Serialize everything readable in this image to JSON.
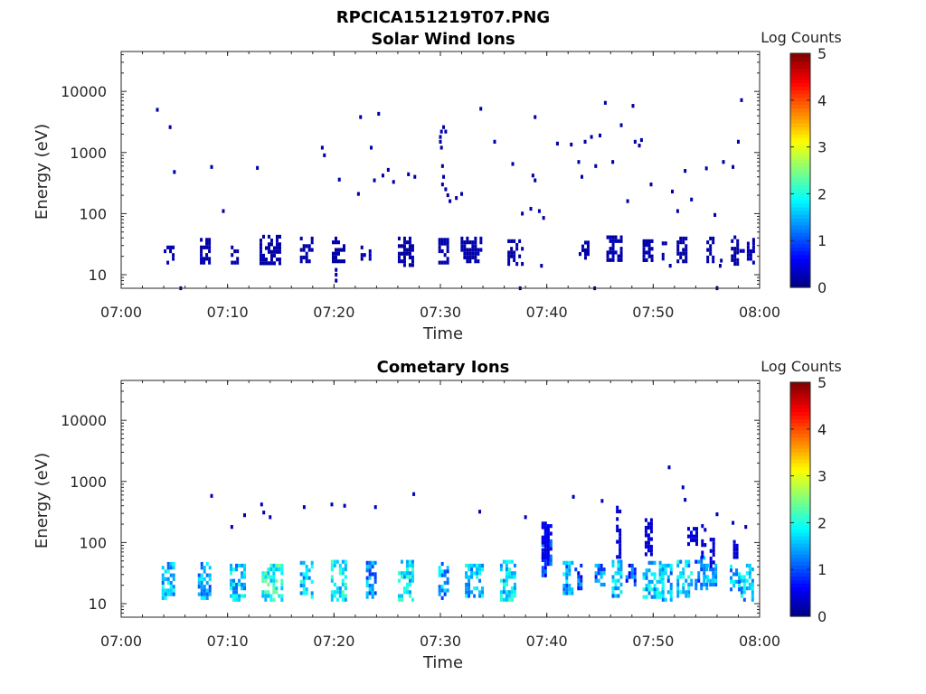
{
  "figure_title": "RPCICA151219T07.PNG",
  "colormap": "jet",
  "chart_data": [
    {
      "type": "heatmap",
      "title": "Solar Wind Ions",
      "xlabel": "Time",
      "ylabel": "Energy (eV)",
      "x_ticks": [
        "07:00",
        "07:10",
        "07:20",
        "07:30",
        "07:40",
        "07:50",
        "08:00"
      ],
      "y_ticks": [
        "10",
        "100",
        "1000",
        "10000"
      ],
      "yscale": "log",
      "ylim": [
        6,
        45000
      ],
      "xlim_minutes": [
        0,
        60
      ],
      "colorbar": {
        "label": "Log Counts",
        "ticks": [
          "0",
          "1",
          "2",
          "3",
          "4",
          "5"
        ],
        "range": [
          0,
          5
        ]
      },
      "cells": [
        [
          3.4,
          5000,
          0.2
        ],
        [
          4.6,
          2600,
          0.2
        ],
        [
          5.0,
          480,
          0.2
        ],
        [
          8.5,
          580,
          0.2
        ],
        [
          9.6,
          110,
          0.2
        ],
        [
          12.8,
          560,
          0.2
        ],
        [
          18.9,
          1200,
          0.2
        ],
        [
          19.1,
          900,
          0.2
        ],
        [
          20.5,
          360,
          0.2
        ],
        [
          22.3,
          210,
          0.2
        ],
        [
          22.5,
          3800,
          0.2
        ],
        [
          23.5,
          1200,
          0.2
        ],
        [
          23.8,
          350,
          0.2
        ],
        [
          24.2,
          4300,
          0.2
        ],
        [
          24.6,
          420,
          0.2
        ],
        [
          25.1,
          520,
          0.2
        ],
        [
          25.6,
          330,
          0.2
        ],
        [
          27.0,
          440,
          0.2
        ],
        [
          27.6,
          400,
          0.2
        ],
        [
          30.0,
          1800,
          0.2
        ],
        [
          30.0,
          1500,
          0.2
        ],
        [
          30.1,
          1200,
          0.2
        ],
        [
          30.1,
          2200,
          0.2
        ],
        [
          30.3,
          2600,
          0.2
        ],
        [
          30.2,
          600,
          0.2
        ],
        [
          30.3,
          400,
          0.2
        ],
        [
          30.2,
          300,
          0.2
        ],
        [
          30.5,
          250,
          0.2
        ],
        [
          30.7,
          200,
          0.2
        ],
        [
          30.9,
          160,
          0.2
        ],
        [
          30.5,
          2200,
          0.2
        ],
        [
          31.5,
          180,
          0.2
        ],
        [
          32.0,
          210,
          0.2
        ],
        [
          33.8,
          5200,
          0.2
        ],
        [
          35.1,
          1500,
          0.2
        ],
        [
          36.8,
          650,
          0.2
        ],
        [
          37.7,
          100,
          0.2
        ],
        [
          38.5,
          120,
          0.2
        ],
        [
          38.7,
          420,
          0.2
        ],
        [
          38.9,
          3800,
          0.2
        ],
        [
          38.9,
          350,
          0.2
        ],
        [
          39.3,
          110,
          0.2
        ],
        [
          39.7,
          85,
          0.2
        ],
        [
          41.0,
          1400,
          0.2
        ],
        [
          42.3,
          1350,
          0.2
        ],
        [
          43.0,
          700,
          0.2
        ],
        [
          43.3,
          400,
          0.2
        ],
        [
          43.6,
          1500,
          0.2
        ],
        [
          44.2,
          1800,
          0.2
        ],
        [
          44.6,
          600,
          0.2
        ],
        [
          45.0,
          1900,
          0.2
        ],
        [
          45.5,
          6500,
          0.2
        ],
        [
          46.2,
          700,
          0.2
        ],
        [
          47.0,
          2800,
          0.2
        ],
        [
          47.6,
          160,
          0.2
        ],
        [
          48.1,
          5800,
          0.2
        ],
        [
          48.3,
          1500,
          0.2
        ],
        [
          48.7,
          1300,
          0.2
        ],
        [
          48.9,
          1600,
          0.2
        ],
        [
          49.8,
          300,
          0.2
        ],
        [
          51.8,
          230,
          0.2
        ],
        [
          52.3,
          110,
          0.2
        ],
        [
          53.0,
          500,
          0.2
        ],
        [
          53.6,
          170,
          0.2
        ],
        [
          55.0,
          550,
          0.2
        ],
        [
          55.8,
          95,
          0.2
        ],
        [
          56.6,
          700,
          0.2
        ],
        [
          57.5,
          580,
          0.2
        ],
        [
          58.0,
          1500,
          0.2
        ],
        [
          58.3,
          7200,
          0.2
        ],
        [
          56.0,
          6,
          0.2
        ],
        [
          37.5,
          6,
          0.2
        ],
        [
          5.6,
          6,
          0.2
        ],
        [
          44.5,
          6,
          0.2
        ],
        [
          20.2,
          8,
          0.2
        ],
        [
          20.2,
          10,
          0.2
        ],
        [
          20.2,
          12,
          0.2
        ],
        [
          39.5,
          14,
          0.2
        ],
        [
          51.6,
          14,
          0.2
        ],
        [
          56.3,
          14,
          0.2
        ],
        [
          56.4,
          17,
          0.2
        ]
      ],
      "bursts": [
        [
          4.0,
          5.0,
          16,
          30,
          0.2
        ],
        [
          7.4,
          8.4,
          16,
          40,
          0.2
        ],
        [
          10.3,
          11.0,
          16,
          30,
          0.2
        ],
        [
          13.0,
          14.9,
          16,
          45,
          0.2
        ],
        [
          16.8,
          18.0,
          16,
          42,
          0.2
        ],
        [
          19.8,
          21.0,
          16,
          42,
          0.2
        ],
        [
          22.5,
          23.5,
          18,
          30,
          0.2
        ],
        [
          26.0,
          27.3,
          14,
          42,
          0.2
        ],
        [
          29.8,
          30.6,
          16,
          40,
          0.2
        ],
        [
          31.9,
          33.7,
          16,
          42,
          0.2
        ],
        [
          36.3,
          37.8,
          16,
          38,
          0.2
        ],
        [
          43.0,
          44.0,
          18,
          36,
          0.2
        ],
        [
          45.6,
          47.0,
          18,
          44,
          0.2
        ],
        [
          49.0,
          50.0,
          18,
          38,
          0.2
        ],
        [
          50.8,
          51.3,
          18,
          35,
          0.2
        ],
        [
          52.2,
          53.2,
          16,
          42,
          0.2
        ],
        [
          55.0,
          55.7,
          16,
          42,
          0.2
        ],
        [
          57.3,
          58.0,
          16,
          44,
          0.2
        ],
        [
          58.1,
          58.6,
          18,
          35,
          0.2
        ],
        [
          58.8,
          59.5,
          16,
          40,
          0.2
        ]
      ]
    },
    {
      "type": "heatmap",
      "title": "Cometary Ions",
      "xlabel": "Time",
      "ylabel": "Energy (eV)",
      "x_ticks": [
        "07:00",
        "07:10",
        "07:20",
        "07:30",
        "07:40",
        "07:50",
        "08:00"
      ],
      "y_ticks": [
        "10",
        "100",
        "1000",
        "10000"
      ],
      "yscale": "log",
      "ylim": [
        6,
        45000
      ],
      "xlim_minutes": [
        0,
        60
      ],
      "colorbar": {
        "label": "Log Counts",
        "ticks": [
          "0",
          "1",
          "2",
          "3",
          "4",
          "5"
        ],
        "range": [
          0,
          5
        ]
      },
      "cells": [
        [
          8.5,
          580,
          0.3
        ],
        [
          11.6,
          280,
          0.2
        ],
        [
          10.4,
          180,
          0.3
        ],
        [
          13.2,
          420,
          0.3
        ],
        [
          13.4,
          310,
          0.3
        ],
        [
          14.0,
          260,
          0.3
        ],
        [
          17.2,
          380,
          0.3
        ],
        [
          19.8,
          420,
          0.3
        ],
        [
          21.0,
          400,
          0.3
        ],
        [
          23.9,
          380,
          0.3
        ],
        [
          27.5,
          620,
          0.3
        ],
        [
          33.7,
          320,
          0.3
        ],
        [
          38.0,
          260,
          0.3
        ],
        [
          42.5,
          560,
          0.3
        ],
        [
          45.2,
          480,
          0.3
        ],
        [
          51.5,
          1700,
          0.3
        ],
        [
          52.8,
          800,
          0.3
        ],
        [
          53.0,
          500,
          0.3
        ],
        [
          56.0,
          290,
          0.3
        ],
        [
          57.5,
          210,
          0.3
        ],
        [
          58.7,
          180,
          0.3
        ]
      ],
      "bursts": [
        [
          3.8,
          5.0,
          12,
          48,
          1.6
        ],
        [
          7.2,
          8.4,
          12,
          48,
          1.4
        ],
        [
          10.2,
          11.5,
          12,
          45,
          1.6
        ],
        [
          13.2,
          15.2,
          12,
          45,
          2.0
        ],
        [
          16.8,
          18.0,
          12,
          50,
          1.6
        ],
        [
          19.7,
          21.0,
          12,
          52,
          1.8
        ],
        [
          23.0,
          24.0,
          12,
          50,
          1.3
        ],
        [
          26.0,
          27.4,
          12,
          52,
          1.8
        ],
        [
          29.8,
          30.8,
          12,
          48,
          1.4
        ],
        [
          32.3,
          34.0,
          14,
          45,
          1.6
        ],
        [
          35.6,
          37.0,
          12,
          52,
          1.7
        ],
        [
          39.5,
          40.5,
          30,
          200,
          0.8
        ],
        [
          41.5,
          42.4,
          14,
          50,
          1.4
        ],
        [
          42.6,
          43.2,
          18,
          45,
          1.0
        ],
        [
          44.5,
          45.5,
          22,
          45,
          1.2
        ],
        [
          46.1,
          47.0,
          14,
          52,
          1.5
        ],
        [
          47.4,
          48.4,
          22,
          45,
          0.9
        ],
        [
          49.0,
          50.8,
          12,
          50,
          1.6
        ],
        [
          50.8,
          51.6,
          12,
          45,
          1.4
        ],
        [
          52.2,
          53.6,
          14,
          52,
          1.6
        ],
        [
          53.9,
          55.0,
          18,
          60,
          1.2
        ],
        [
          55.0,
          56.0,
          20,
          45,
          1.4
        ],
        [
          57.2,
          58.2,
          14,
          50,
          1.5
        ],
        [
          58.2,
          59.3,
          12,
          45,
          1.5
        ],
        [
          39.5,
          40.2,
          60,
          220,
          0.5
        ],
        [
          46.5,
          47.0,
          60,
          400,
          0.4
        ],
        [
          49.2,
          49.8,
          60,
          250,
          0.4
        ],
        [
          53.2,
          54.0,
          100,
          180,
          0.4
        ],
        [
          54.5,
          55.0,
          60,
          200,
          0.4
        ],
        [
          55.3,
          55.8,
          40,
          120,
          0.4
        ],
        [
          57.5,
          58.0,
          60,
          110,
          0.4
        ]
      ]
    }
  ]
}
